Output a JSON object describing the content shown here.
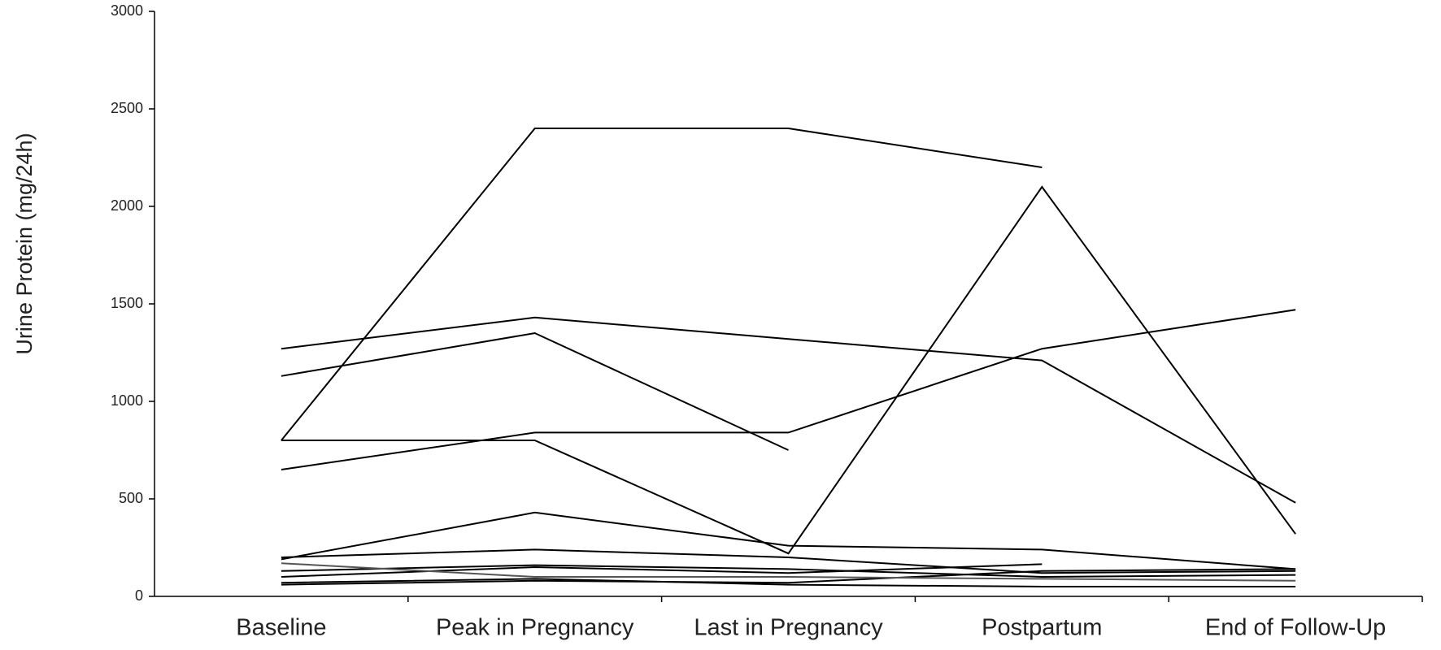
{
  "chart_data": {
    "type": "line",
    "y_label": "Urine Protein (mg/24h)",
    "categories": [
      "Baseline",
      "Peak in Pregnancy",
      "Last in Pregnancy",
      "Postpartum",
      "End of Follow-Up"
    ],
    "ylim": [
      0,
      3000
    ],
    "yticks": [
      0,
      500,
      1000,
      1500,
      2000,
      2500,
      3000
    ],
    "grid": false,
    "series": [
      {
        "color": "#000000",
        "values": [
          800,
          2400,
          2400,
          2200,
          null
        ]
      },
      {
        "color": "#000000",
        "values": [
          800,
          800,
          220,
          2100,
          320
        ]
      },
      {
        "color": "#000000",
        "values": [
          1130,
          1350,
          750,
          null,
          null
        ]
      },
      {
        "color": "#000000",
        "values": [
          1270,
          1430,
          1320,
          1210,
          480
        ]
      },
      {
        "color": "#000000",
        "values": [
          650,
          840,
          840,
          1270,
          1470
        ]
      },
      {
        "color": "#000000",
        "values": [
          190,
          430,
          260,
          240,
          140
        ]
      },
      {
        "color": "#000000",
        "values": [
          200,
          240,
          200,
          120,
          130
        ]
      },
      {
        "color": "#000000",
        "values": [
          130,
          160,
          140,
          100,
          110
        ]
      },
      {
        "color": "#000000",
        "values": [
          100,
          150,
          120,
          165,
          null
        ]
      },
      {
        "color": "#000000",
        "values": [
          60,
          80,
          70,
          130,
          140
        ]
      },
      {
        "color": "#000000",
        "values": [
          70,
          90,
          60,
          50,
          50
        ]
      },
      {
        "color": "#555555",
        "values": [
          170,
          100,
          100,
          90,
          80
        ]
      }
    ]
  }
}
